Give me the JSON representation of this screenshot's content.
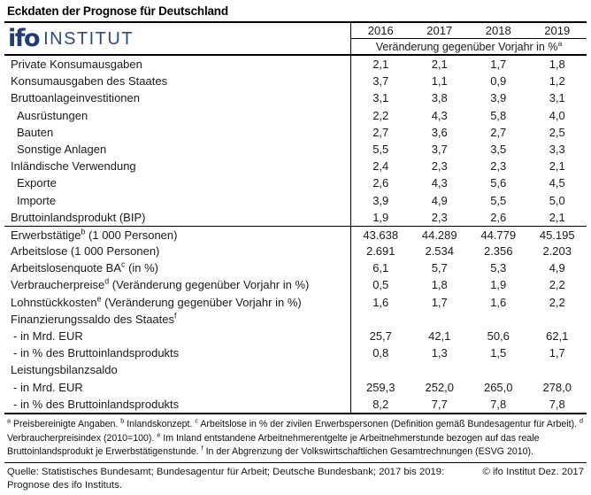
{
  "title": "Eckdaten der Prognose für Deutschland",
  "logo": {
    "brand": "ifo",
    "suffix": "INSTITUT",
    "brand_color": "#223c78"
  },
  "header": {
    "years": [
      "2016",
      "2017",
      "2018",
      "2019"
    ],
    "subheader": "Veränderung gegenüber Vorjahr in %",
    "subheader_sup": "a"
  },
  "table": {
    "rows": [
      {
        "label": "Private Konsumausgaben",
        "sup": "",
        "suffix": "",
        "indent": 0,
        "section_start": false,
        "values": [
          "2,1",
          "2,1",
          "1,7",
          "1,8"
        ]
      },
      {
        "label": "Konsumausgaben des Staates",
        "sup": "",
        "suffix": "",
        "indent": 0,
        "section_start": false,
        "values": [
          "3,7",
          "1,1",
          "0,9",
          "1,2"
        ]
      },
      {
        "label": "Bruttoanlageinvestitionen",
        "sup": "",
        "suffix": "",
        "indent": 0,
        "section_start": false,
        "values": [
          "3,1",
          "3,8",
          "3,9",
          "3,1"
        ]
      },
      {
        "label": "Ausrüstungen",
        "sup": "",
        "suffix": "",
        "indent": 1,
        "section_start": false,
        "values": [
          "2,2",
          "4,3",
          "5,8",
          "4,0"
        ]
      },
      {
        "label": "Bauten",
        "sup": "",
        "suffix": "",
        "indent": 1,
        "section_start": false,
        "values": [
          "2,7",
          "3,6",
          "2,7",
          "2,5"
        ]
      },
      {
        "label": "Sonstige Anlagen",
        "sup": "",
        "suffix": "",
        "indent": 1,
        "section_start": false,
        "values": [
          "5,5",
          "3,7",
          "3,5",
          "3,3"
        ]
      },
      {
        "label": "Inländische Verwendung",
        "sup": "",
        "suffix": "",
        "indent": 0,
        "section_start": false,
        "values": [
          "2,4",
          "2,3",
          "2,3",
          "2,1"
        ]
      },
      {
        "label": "Exporte",
        "sup": "",
        "suffix": "",
        "indent": 1,
        "section_start": false,
        "values": [
          "2,6",
          "4,3",
          "5,6",
          "4,5"
        ]
      },
      {
        "label": "Importe",
        "sup": "",
        "suffix": "",
        "indent": 1,
        "section_start": false,
        "values": [
          "3,9",
          "4,9",
          "5,5",
          "5,0"
        ]
      },
      {
        "label": "Bruttoinlandsprodukt (BIP)",
        "sup": "",
        "suffix": "",
        "indent": 0,
        "section_start": false,
        "values": [
          "1,9",
          "2,3",
          "2,6",
          "2,1"
        ]
      },
      {
        "label": "Erwerbstätige",
        "sup": "b",
        "suffix": " (1 000 Personen)",
        "indent": 0,
        "section_start": true,
        "values": [
          "43.638",
          "44.289",
          "44.779",
          "45.195"
        ]
      },
      {
        "label": "Arbeitslose (1 000 Personen)",
        "sup": "",
        "suffix": "",
        "indent": 0,
        "section_start": false,
        "values": [
          "2.691",
          "2.534",
          "2.356",
          "2.203"
        ]
      },
      {
        "label": "Arbeitslosenquote BA",
        "sup": "c",
        "suffix": " (in %)",
        "indent": 0,
        "section_start": false,
        "values": [
          "6,1",
          "5,7",
          "5,3",
          "4,9"
        ]
      },
      {
        "label": "Verbraucherpreise",
        "sup": "d",
        "suffix": " (Veränderung gegenüber Vorjahr in %)",
        "indent": 0,
        "section_start": false,
        "values": [
          "0,5",
          "1,8",
          "1,9",
          "2,2"
        ]
      },
      {
        "label": "Lohnstückkosten",
        "sup": "e",
        "suffix": " (Veränderung gegenüber Vorjahr in %)",
        "indent": 0,
        "section_start": false,
        "values": [
          "1,6",
          "1,7",
          "1,6",
          "2,2"
        ]
      },
      {
        "label": "Finanzierungssaldo des Staates",
        "sup": "f",
        "suffix": "",
        "indent": 0,
        "section_start": false,
        "values": [
          "",
          "",
          "",
          ""
        ]
      },
      {
        "label": "- in Mrd. EUR",
        "sup": "",
        "suffix": "",
        "indent": 2,
        "section_start": false,
        "values": [
          "25,7",
          "42,1",
          "50,6",
          "62,1"
        ]
      },
      {
        "label": "- in % des Bruttoinlandsprodukts",
        "sup": "",
        "suffix": "",
        "indent": 2,
        "section_start": false,
        "values": [
          "0,8",
          "1,3",
          "1,5",
          "1,7"
        ]
      },
      {
        "label": "Leistungsbilanzsaldo",
        "sup": "",
        "suffix": "",
        "indent": 0,
        "section_start": false,
        "values": [
          "",
          "",
          "",
          ""
        ]
      },
      {
        "label": "- in Mrd. EUR",
        "sup": "",
        "suffix": "",
        "indent": 2,
        "section_start": false,
        "values": [
          "259,3",
          "252,0",
          "265,0",
          "278,0"
        ]
      },
      {
        "label": "- in % des Bruttoinlandsprodukts",
        "sup": "",
        "suffix": "",
        "indent": 2,
        "section_start": false,
        "values": [
          "8,2",
          "7,7",
          "7,8",
          "7,8"
        ]
      }
    ]
  },
  "footnotes": [
    {
      "sup": "a",
      "text": "Preisbereinigte Angaben."
    },
    {
      "sup": "b",
      "text": "Inlandskonzept."
    },
    {
      "sup": "c",
      "text": "Arbeitslose in % der zivilen Erwerbspersonen (Definition gemäß Bundesagentur für Arbeit)."
    },
    {
      "sup": "d",
      "text": "Verbraucherpreisindex (2010=100)."
    },
    {
      "sup": "e",
      "text": "Im Inland entstandene Arbeitnehmerentgelte je Arbeitnehmerstunde bezogen auf das reale Bruttoinlandsprodukt je Erwerbstätigenstunde."
    },
    {
      "sup": "f",
      "text": "In der Abgrenzung der Volkswirtschaftlichen Gesamtrechnungen (ESVG 2010)."
    }
  ],
  "source": {
    "text": "Quelle: Statistisches Bundesamt; Bundesagentur für Arbeit; Deutsche Bundesbank; 2017 bis 2019: Prognose des ifo Instituts.",
    "copyright": "© ifo Institut Dez. 2017"
  }
}
